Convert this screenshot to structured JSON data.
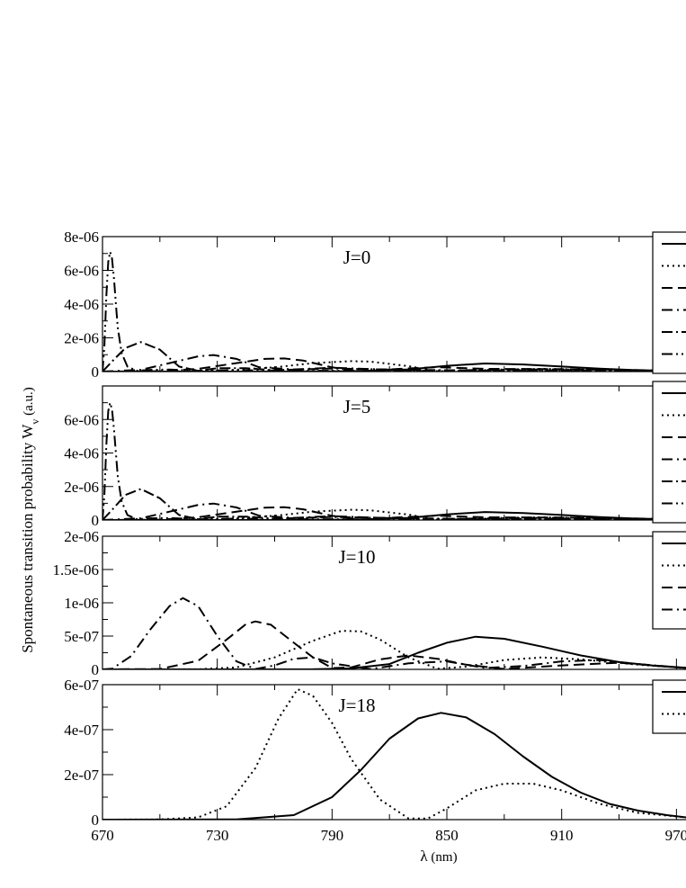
{
  "chart_data": {
    "type": "line",
    "ylabel_main": "Spontaneous transition probability W",
    "ylabel_sub": "v",
    "ylabel_unit": " (a.u.)",
    "xlabel_symbol": "λ",
    "xlabel_unit": " (nm)",
    "xlim": [
      670,
      975
    ],
    "x_ticks": [
      670,
      730,
      790,
      850,
      910,
      970
    ],
    "x_tick_labels": [
      "670",
      "730",
      "790",
      "850",
      "910",
      "970"
    ],
    "line_styles": [
      "solid",
      "dotted",
      "dashed",
      "dashdot",
      "dashdotdash",
      "dashdotdot"
    ],
    "panels": [
      {
        "title": "J=0",
        "ylim": [
          0,
          8e-06
        ],
        "y_ticks": [
          0,
          2e-06,
          4e-06,
          6e-06,
          8e-06
        ],
        "y_tick_labels": [
          "0",
          "2e-06",
          "4e-06",
          "6e-06",
          "8e-06"
        ],
        "legend_entries": 6,
        "series": [
          {
            "style": "solid",
            "x": [
              670,
              720,
              760,
              800,
              830,
              850,
              870,
              890,
              910,
              930,
              950,
              975
            ],
            "y": [
              0,
              0,
              2e-09,
              2e-08,
              1.3e-07,
              3.4e-07,
              4.8e-07,
              4.2e-07,
              3e-07,
              1.7e-07,
              8e-08,
              3e-08
            ]
          },
          {
            "style": "dotted",
            "x": [
              670,
              700,
              730,
              760,
              780,
              800,
              810,
              830,
              845,
              860,
              880,
              900,
              920,
              950,
              975
            ],
            "y": [
              0,
              0,
              4e-08,
              2.5e-07,
              5e-07,
              6.2e-07,
              5.9e-07,
              3.2e-07,
              2e-08,
              4e-08,
              1.3e-07,
              1.6e-07,
              1.3e-07,
              6e-08,
              2e-08
            ]
          },
          {
            "style": "dashed",
            "x": [
              670,
              700,
              720,
              740,
              755,
              765,
              775,
              790,
              805,
              825,
              845,
              870,
              900,
              930,
              960,
              975
            ],
            "y": [
              0,
              2e-08,
              1.6e-07,
              5e-07,
              7.5e-07,
              7.8e-07,
              6.5e-07,
              2.5e-07,
              5e-09,
              1.6e-07,
              2.6e-07,
              1.6e-07,
              1.5e-07,
              1.3e-07,
              7e-08,
              3e-08
            ]
          },
          {
            "style": "dashdot",
            "x": [
              670,
              690,
              705,
              720,
              728,
              740,
              752,
              770,
              790,
              810,
              840,
              870,
              900,
              930,
              960,
              975
            ],
            "y": [
              0,
              1e-07,
              5e-07,
              9e-07,
              9.8e-07,
              7.5e-07,
              2.5e-07,
              1.3e-07,
              2.3e-07,
              1.5e-07,
              5e-08,
              1e-07,
              1.3e-07,
              1.1e-07,
              5e-08,
              2e-08
            ]
          },
          {
            "style": "dashdotdash",
            "x": [
              670,
              675,
              682,
              690,
              700,
              710,
              720,
              730,
              745,
              760,
              790,
              830,
              870,
              910,
              950,
              975
            ],
            "y": [
              0,
              6e-07,
              1.4e-06,
              1.75e-06,
              1.3e-06,
              3e-07,
              5e-08,
              2e-07,
              2e-07,
              8e-08,
              1.8e-07,
              1e-07,
              6e-08,
              8e-08,
              5e-08,
              2e-08
            ]
          },
          {
            "style": "dashdotdot",
            "x": [
              670,
              671,
              672,
              673,
              674,
              675,
              676,
              677,
              678,
              680,
              683,
              688,
              695,
              705,
              720,
              740,
              780,
              850,
              920,
              975
            ],
            "y": [
              0,
              1.5e-06,
              4.5e-06,
              6.5e-06,
              7.1e-06,
              6.7e-06,
              5.5e-06,
              4e-06,
              2.6e-06,
              1.1e-06,
              3e-07,
              5e-08,
              1e-07,
              1.2e-07,
              5e-08,
              8e-08,
              5e-08,
              3e-08,
              2e-08,
              1e-08
            ]
          }
        ]
      },
      {
        "title": "J=5",
        "ylim": [
          0,
          8e-06
        ],
        "y_ticks": [
          0,
          2e-06,
          4e-06,
          6e-06,
          8e-06
        ],
        "y_tick_labels": [
          "0",
          "2e-06",
          "4e-06",
          "6e-06",
          ""
        ],
        "legend_entries": 6,
        "series": [
          {
            "style": "solid",
            "x": [
              670,
              720,
              760,
              800,
              830,
              850,
              870,
              890,
              910,
              930,
              950,
              975
            ],
            "y": [
              0,
              0,
              2e-09,
              2e-08,
              1.3e-07,
              3.4e-07,
              4.8e-07,
              4.2e-07,
              3e-07,
              1.7e-07,
              8e-08,
              3e-08
            ]
          },
          {
            "style": "dotted",
            "x": [
              670,
              700,
              730,
              760,
              780,
              800,
              810,
              830,
              845,
              860,
              880,
              900,
              920,
              950,
              975
            ],
            "y": [
              0,
              0,
              4e-08,
              2.5e-07,
              5e-07,
              6.1e-07,
              5.8e-07,
              3.2e-07,
              2e-08,
              4e-08,
              1.3e-07,
              1.6e-07,
              1.3e-07,
              6e-08,
              2e-08
            ]
          },
          {
            "style": "dashed",
            "x": [
              670,
              700,
              720,
              740,
              755,
              765,
              775,
              790,
              805,
              825,
              845,
              870,
              900,
              930,
              960,
              975
            ],
            "y": [
              0,
              2e-08,
              1.6e-07,
              5e-07,
              7.4e-07,
              7.7e-07,
              6.4e-07,
              2.5e-07,
              5e-09,
              1.6e-07,
              2.6e-07,
              1.6e-07,
              1.5e-07,
              1.3e-07,
              7e-08,
              3e-08
            ]
          },
          {
            "style": "dashdot",
            "x": [
              670,
              690,
              705,
              720,
              728,
              740,
              752,
              770,
              790,
              810,
              840,
              870,
              900,
              930,
              960,
              975
            ],
            "y": [
              0,
              1e-07,
              5e-07,
              9e-07,
              9.8e-07,
              7.5e-07,
              2.5e-07,
              1.3e-07,
              2.3e-07,
              1.5e-07,
              5e-08,
              1e-07,
              1.3e-07,
              1.1e-07,
              5e-08,
              2e-08
            ]
          },
          {
            "style": "dashdotdash",
            "x": [
              670,
              675,
              682,
              690,
              700,
              710,
              720,
              730,
              745,
              760,
              790,
              830,
              870,
              910,
              950,
              975
            ],
            "y": [
              0,
              6e-07,
              1.5e-06,
              1.85e-06,
              1.3e-06,
              3e-07,
              5e-08,
              2e-07,
              2e-07,
              8e-08,
              1.8e-07,
              1e-07,
              6e-08,
              8e-08,
              5e-08,
              2e-08
            ]
          },
          {
            "style": "dashdotdot",
            "x": [
              670,
              671,
              672,
              673,
              674,
              675,
              676,
              677,
              678,
              680,
              683,
              688,
              695,
              705,
              720,
              740,
              780,
              850,
              920,
              975
            ],
            "y": [
              0,
              1.5e-06,
              4.5e-06,
              6.5e-06,
              7e-06,
              6.6e-06,
              5.4e-06,
              4e-06,
              2.6e-06,
              1.1e-06,
              3e-07,
              5e-08,
              1e-07,
              1.2e-07,
              5e-08,
              8e-08,
              5e-08,
              3e-08,
              2e-08,
              1e-08
            ]
          }
        ]
      },
      {
        "title": "J=10",
        "ylim": [
          0,
          2e-06
        ],
        "y_ticks": [
          0,
          5e-07,
          1e-06,
          1.5e-06,
          2e-06
        ],
        "y_tick_labels": [
          "0",
          "5e-07",
          "1e-06",
          "1.5e-06",
          "2e-06"
        ],
        "legend_entries": 4,
        "series": [
          {
            "style": "solid",
            "x": [
              670,
              740,
              780,
              800,
              820,
              835,
              850,
              865,
              880,
              900,
              920,
              940,
              960,
              975
            ],
            "y": [
              0,
              0,
              2e-09,
              1.5e-08,
              8e-08,
              2.5e-07,
              4e-07,
              4.9e-07,
              4.6e-07,
              3.4e-07,
              2.1e-07,
              1.1e-07,
              5e-08,
              2.5e-08
            ]
          },
          {
            "style": "dotted",
            "x": [
              670,
              720,
              740,
              760,
              780,
              795,
              805,
              815,
              830,
              845,
              860,
              880,
              900,
              920,
              950,
              975
            ],
            "y": [
              0,
              1e-09,
              3e-08,
              1.8e-07,
              4.3e-07,
              5.8e-07,
              5.7e-07,
              4.5e-07,
              1.8e-07,
              1e-08,
              4e-08,
              1.4e-07,
              1.8e-07,
              1.5e-07,
              7e-08,
              2e-08
            ]
          },
          {
            "style": "dashed",
            "x": [
              670,
              700,
              720,
              735,
              745,
              750,
              758,
              770,
              780,
              790,
              800,
              815,
              830,
              845,
              860,
              880,
              910,
              940,
              975
            ],
            "y": [
              0,
              5e-09,
              1.3e-07,
              4.5e-07,
              6.8e-07,
              7.2e-07,
              6.7e-07,
              4e-07,
              1.8e-07,
              2e-08,
              3e-08,
              1.5e-07,
              2.1e-07,
              1.6e-07,
              7e-08,
              5e-09,
              6e-08,
              1e-07,
              2e-08
            ]
          },
          {
            "style": "dashdot",
            "x": [
              670,
              675,
              685,
              695,
              705,
              712,
              720,
              730,
              740,
              750,
              760,
              770,
              780,
              790,
              810,
              830,
              850,
              870,
              890,
              910,
              930,
              950,
              975
            ],
            "y": [
              0,
              1e-08,
              2e-07,
              6e-07,
              9.5e-07,
              1.07e-06,
              9.5e-07,
              5e-07,
              1.2e-07,
              5e-09,
              6e-08,
              1.6e-07,
              1.8e-07,
              9e-08,
              5e-09,
              9e-08,
              1.2e-07,
              2e-08,
              5e-08,
              1.2e-07,
              1.4e-07,
              8e-08,
              2e-08
            ]
          }
        ]
      },
      {
        "title": "J=18",
        "ylim": [
          0,
          6e-07
        ],
        "y_ticks": [
          0,
          2e-07,
          4e-07,
          6e-07
        ],
        "y_tick_labels": [
          "0",
          "2e-07",
          "4e-07",
          "6e-07"
        ],
        "legend_entries": 2,
        "series": [
          {
            "style": "solid",
            "x": [
              670,
              740,
              770,
              790,
              805,
              820,
              835,
              847,
              860,
              875,
              890,
              905,
              920,
              935,
              950,
              965,
              975
            ],
            "y": [
              0,
              1e-09,
              2e-08,
              1e-07,
              2.2e-07,
              3.6e-07,
              4.5e-07,
              4.75e-07,
              4.55e-07,
              3.8e-07,
              2.8e-07,
              1.9e-07,
              1.2e-07,
              7e-08,
              4e-08,
              2e-08,
              1e-08
            ]
          },
          {
            "style": "dotted",
            "x": [
              670,
              700,
              720,
              735,
              750,
              762,
              772,
              780,
              790,
              800,
              815,
              830,
              840,
              850,
              865,
              880,
              895,
              910,
              930,
              950,
              975
            ],
            "y": [
              0,
              1e-09,
              1e-08,
              6e-08,
              2.3e-07,
              4.5e-07,
              5.8e-07,
              5.5e-07,
              4.3e-07,
              2.7e-07,
              9e-08,
              5e-09,
              5e-09,
              5e-08,
              1.3e-07,
              1.6e-07,
              1.6e-07,
              1.3e-07,
              7e-08,
              3e-08,
              1e-08
            ]
          }
        ]
      }
    ]
  }
}
